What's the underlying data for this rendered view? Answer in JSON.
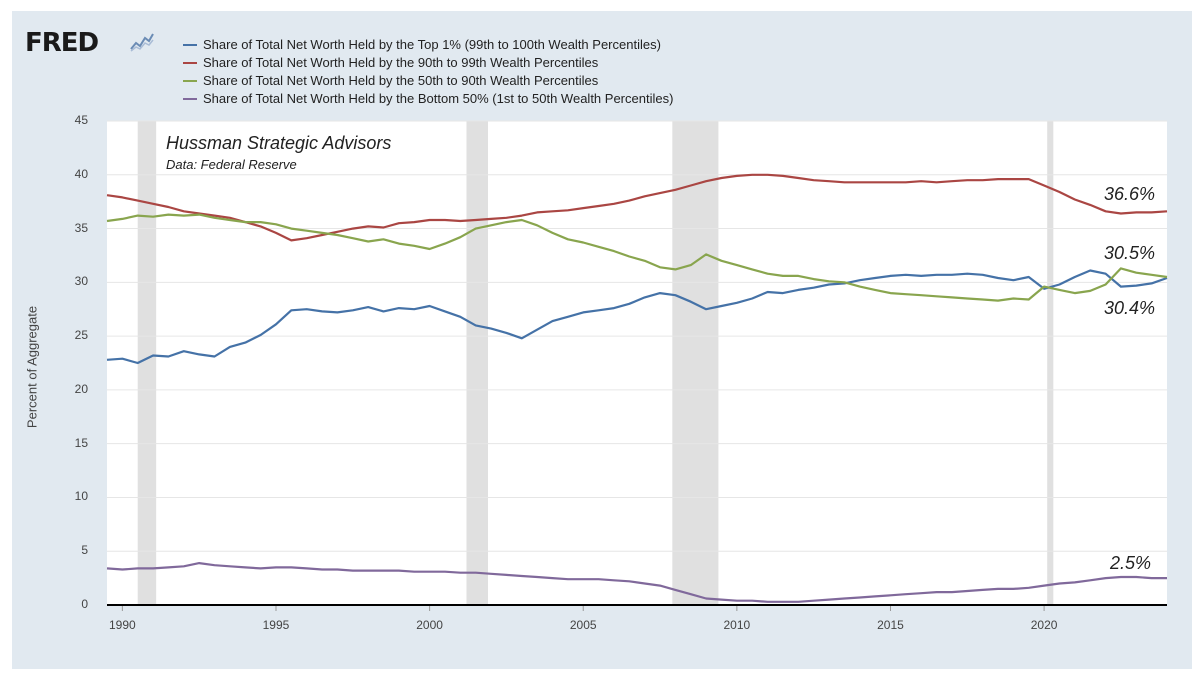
{
  "logo": {
    "text": "FRED",
    "icon": "fred-chart-line-icon"
  },
  "annotation": {
    "title": "Hussman Strategic Advisors",
    "subtitle": "Data: Federal Reserve"
  },
  "colors": {
    "frame": "#e1e9f0",
    "plot_bg": "#ffffff",
    "grid": "#e6e6e6",
    "recession": "#e0e0e0",
    "top1": "#4572a7",
    "p90_99": "#aa4643",
    "p50_90": "#89a54e",
    "bottom50": "#80699b"
  },
  "end_labels": [
    "36.6%",
    "30.5%",
    "30.4%",
    "2.5%"
  ],
  "chart_data": {
    "type": "line",
    "title": "",
    "xlabel": "",
    "ylabel": "Percent of Aggregate",
    "xlim": [
      1989.5,
      2024.0
    ],
    "ylim": [
      0,
      45
    ],
    "y_ticks": [
      "0",
      "5",
      "10",
      "15",
      "20",
      "25",
      "30",
      "35",
      "40",
      "45"
    ],
    "x_ticks": [
      "1990",
      "1995",
      "2000",
      "2005",
      "2010",
      "2015",
      "2020"
    ],
    "grid": "horizontal",
    "legend_position": "top",
    "recessions": [
      [
        1990.5,
        1991.1
      ],
      [
        2001.2,
        2001.9
      ],
      [
        2007.9,
        2009.4
      ],
      [
        2020.1,
        2020.3
      ]
    ],
    "series": [
      {
        "name": "Share of Total Net Worth Held by the Top 1% (99th to 100th Wealth Percentiles)",
        "points": [
          [
            1989.5,
            22.8
          ],
          [
            1990.0,
            22.9
          ],
          [
            1990.5,
            22.5
          ],
          [
            1991.0,
            23.2
          ],
          [
            1991.5,
            23.1
          ],
          [
            1992.0,
            23.6
          ],
          [
            1992.5,
            23.3
          ],
          [
            1993.0,
            23.1
          ],
          [
            1993.5,
            24.0
          ],
          [
            1994.0,
            24.4
          ],
          [
            1994.5,
            25.1
          ],
          [
            1995.0,
            26.1
          ],
          [
            1995.5,
            27.4
          ],
          [
            1996.0,
            27.5
          ],
          [
            1996.5,
            27.3
          ],
          [
            1997.0,
            27.2
          ],
          [
            1997.5,
            27.4
          ],
          [
            1998.0,
            27.7
          ],
          [
            1998.5,
            27.3
          ],
          [
            1999.0,
            27.6
          ],
          [
            1999.5,
            27.5
          ],
          [
            2000.0,
            27.8
          ],
          [
            2000.5,
            27.3
          ],
          [
            2001.0,
            26.8
          ],
          [
            2001.5,
            26.0
          ],
          [
            2002.0,
            25.7
          ],
          [
            2002.5,
            25.3
          ],
          [
            2003.0,
            24.8
          ],
          [
            2003.5,
            25.6
          ],
          [
            2004.0,
            26.4
          ],
          [
            2004.5,
            26.8
          ],
          [
            2005.0,
            27.2
          ],
          [
            2005.5,
            27.4
          ],
          [
            2006.0,
            27.6
          ],
          [
            2006.5,
            28.0
          ],
          [
            2007.0,
            28.6
          ],
          [
            2007.5,
            29.0
          ],
          [
            2008.0,
            28.8
          ],
          [
            2008.5,
            28.2
          ],
          [
            2009.0,
            27.5
          ],
          [
            2009.5,
            27.8
          ],
          [
            2010.0,
            28.1
          ],
          [
            2010.5,
            28.5
          ],
          [
            2011.0,
            29.1
          ],
          [
            2011.5,
            29.0
          ],
          [
            2012.0,
            29.3
          ],
          [
            2012.5,
            29.5
          ],
          [
            2013.0,
            29.8
          ],
          [
            2013.5,
            29.9
          ],
          [
            2014.0,
            30.2
          ],
          [
            2014.5,
            30.4
          ],
          [
            2015.0,
            30.6
          ],
          [
            2015.5,
            30.7
          ],
          [
            2016.0,
            30.6
          ],
          [
            2016.5,
            30.7
          ],
          [
            2017.0,
            30.7
          ],
          [
            2017.5,
            30.8
          ],
          [
            2018.0,
            30.7
          ],
          [
            2018.5,
            30.4
          ],
          [
            2019.0,
            30.2
          ],
          [
            2019.5,
            30.5
          ],
          [
            2020.0,
            29.4
          ],
          [
            2020.5,
            29.8
          ],
          [
            2021.0,
            30.5
          ],
          [
            2021.5,
            31.1
          ],
          [
            2022.0,
            30.8
          ],
          [
            2022.5,
            29.6
          ],
          [
            2023.0,
            29.7
          ],
          [
            2023.5,
            29.9
          ],
          [
            2024.0,
            30.4
          ]
        ]
      },
      {
        "name": "Share of Total Net Worth Held by the 90th to 99th Wealth Percentiles",
        "points": [
          [
            1989.5,
            38.1
          ],
          [
            1990.0,
            37.9
          ],
          [
            1990.5,
            37.6
          ],
          [
            1991.0,
            37.3
          ],
          [
            1991.5,
            37.0
          ],
          [
            1992.0,
            36.6
          ],
          [
            1992.5,
            36.4
          ],
          [
            1993.0,
            36.2
          ],
          [
            1993.5,
            36.0
          ],
          [
            1994.0,
            35.6
          ],
          [
            1994.5,
            35.2
          ],
          [
            1995.0,
            34.6
          ],
          [
            1995.5,
            33.9
          ],
          [
            1996.0,
            34.1
          ],
          [
            1996.5,
            34.4
          ],
          [
            1997.0,
            34.7
          ],
          [
            1997.5,
            35.0
          ],
          [
            1998.0,
            35.2
          ],
          [
            1998.5,
            35.1
          ],
          [
            1999.0,
            35.5
          ],
          [
            1999.5,
            35.6
          ],
          [
            2000.0,
            35.8
          ],
          [
            2000.5,
            35.8
          ],
          [
            2001.0,
            35.7
          ],
          [
            2001.5,
            35.8
          ],
          [
            2002.0,
            35.9
          ],
          [
            2002.5,
            36.0
          ],
          [
            2003.0,
            36.2
          ],
          [
            2003.5,
            36.5
          ],
          [
            2004.0,
            36.6
          ],
          [
            2004.5,
            36.7
          ],
          [
            2005.0,
            36.9
          ],
          [
            2005.5,
            37.1
          ],
          [
            2006.0,
            37.3
          ],
          [
            2006.5,
            37.6
          ],
          [
            2007.0,
            38.0
          ],
          [
            2007.5,
            38.3
          ],
          [
            2008.0,
            38.6
          ],
          [
            2008.5,
            39.0
          ],
          [
            2009.0,
            39.4
          ],
          [
            2009.5,
            39.7
          ],
          [
            2010.0,
            39.9
          ],
          [
            2010.5,
            40.0
          ],
          [
            2011.0,
            40.0
          ],
          [
            2011.5,
            39.9
          ],
          [
            2012.0,
            39.7
          ],
          [
            2012.5,
            39.5
          ],
          [
            2013.0,
            39.4
          ],
          [
            2013.5,
            39.3
          ],
          [
            2014.0,
            39.3
          ],
          [
            2014.5,
            39.3
          ],
          [
            2015.0,
            39.3
          ],
          [
            2015.5,
            39.3
          ],
          [
            2016.0,
            39.4
          ],
          [
            2016.5,
            39.3
          ],
          [
            2017.0,
            39.4
          ],
          [
            2017.5,
            39.5
          ],
          [
            2018.0,
            39.5
          ],
          [
            2018.5,
            39.6
          ],
          [
            2019.0,
            39.6
          ],
          [
            2019.5,
            39.6
          ],
          [
            2020.0,
            39.0
          ],
          [
            2020.5,
            38.4
          ],
          [
            2021.0,
            37.7
          ],
          [
            2021.5,
            37.2
          ],
          [
            2022.0,
            36.6
          ],
          [
            2022.5,
            36.4
          ],
          [
            2023.0,
            36.5
          ],
          [
            2023.5,
            36.5
          ],
          [
            2024.0,
            36.6
          ]
        ]
      },
      {
        "name": "Share of Total Net Worth Held by the 50th to 90th Wealth Percentiles",
        "points": [
          [
            1989.5,
            35.7
          ],
          [
            1990.0,
            35.9
          ],
          [
            1990.5,
            36.2
          ],
          [
            1991.0,
            36.1
          ],
          [
            1991.5,
            36.3
          ],
          [
            1992.0,
            36.2
          ],
          [
            1992.5,
            36.3
          ],
          [
            1993.0,
            36.0
          ],
          [
            1993.5,
            35.8
          ],
          [
            1994.0,
            35.6
          ],
          [
            1994.5,
            35.6
          ],
          [
            1995.0,
            35.4
          ],
          [
            1995.5,
            35.0
          ],
          [
            1996.0,
            34.8
          ],
          [
            1996.5,
            34.6
          ],
          [
            1997.0,
            34.4
          ],
          [
            1997.5,
            34.1
          ],
          [
            1998.0,
            33.8
          ],
          [
            1998.5,
            34.0
          ],
          [
            1999.0,
            33.6
          ],
          [
            1999.5,
            33.4
          ],
          [
            2000.0,
            33.1
          ],
          [
            2000.5,
            33.6
          ],
          [
            2001.0,
            34.2
          ],
          [
            2001.5,
            35.0
          ],
          [
            2002.0,
            35.3
          ],
          [
            2002.5,
            35.6
          ],
          [
            2003.0,
            35.8
          ],
          [
            2003.5,
            35.3
          ],
          [
            2004.0,
            34.6
          ],
          [
            2004.5,
            34.0
          ],
          [
            2005.0,
            33.7
          ],
          [
            2005.5,
            33.3
          ],
          [
            2006.0,
            32.9
          ],
          [
            2006.5,
            32.4
          ],
          [
            2007.0,
            32.0
          ],
          [
            2007.5,
            31.4
          ],
          [
            2008.0,
            31.2
          ],
          [
            2008.5,
            31.6
          ],
          [
            2009.0,
            32.6
          ],
          [
            2009.5,
            32.0
          ],
          [
            2010.0,
            31.6
          ],
          [
            2010.5,
            31.2
          ],
          [
            2011.0,
            30.8
          ],
          [
            2011.5,
            30.6
          ],
          [
            2012.0,
            30.6
          ],
          [
            2012.5,
            30.3
          ],
          [
            2013.0,
            30.1
          ],
          [
            2013.5,
            30.0
          ],
          [
            2014.0,
            29.6
          ],
          [
            2014.5,
            29.3
          ],
          [
            2015.0,
            29.0
          ],
          [
            2015.5,
            28.9
          ],
          [
            2016.0,
            28.8
          ],
          [
            2016.5,
            28.7
          ],
          [
            2017.0,
            28.6
          ],
          [
            2017.5,
            28.5
          ],
          [
            2018.0,
            28.4
          ],
          [
            2018.5,
            28.3
          ],
          [
            2019.0,
            28.5
          ],
          [
            2019.5,
            28.4
          ],
          [
            2020.0,
            29.6
          ],
          [
            2020.5,
            29.3
          ],
          [
            2021.0,
            29.0
          ],
          [
            2021.5,
            29.2
          ],
          [
            2022.0,
            29.8
          ],
          [
            2022.5,
            31.3
          ],
          [
            2023.0,
            30.9
          ],
          [
            2023.5,
            30.7
          ],
          [
            2024.0,
            30.5
          ]
        ]
      },
      {
        "name": "Share of Total Net Worth Held by the Bottom 50% (1st to 50th Wealth Percentiles)",
        "points": [
          [
            1989.5,
            3.4
          ],
          [
            1990.0,
            3.3
          ],
          [
            1990.5,
            3.4
          ],
          [
            1991.0,
            3.4
          ],
          [
            1991.5,
            3.5
          ],
          [
            1992.0,
            3.6
          ],
          [
            1992.5,
            3.9
          ],
          [
            1993.0,
            3.7
          ],
          [
            1993.5,
            3.6
          ],
          [
            1994.0,
            3.5
          ],
          [
            1994.5,
            3.4
          ],
          [
            1995.0,
            3.5
          ],
          [
            1995.5,
            3.5
          ],
          [
            1996.0,
            3.4
          ],
          [
            1996.5,
            3.3
          ],
          [
            1997.0,
            3.3
          ],
          [
            1997.5,
            3.2
          ],
          [
            1998.0,
            3.2
          ],
          [
            1998.5,
            3.2
          ],
          [
            1999.0,
            3.2
          ],
          [
            1999.5,
            3.1
          ],
          [
            2000.0,
            3.1
          ],
          [
            2000.5,
            3.1
          ],
          [
            2001.0,
            3.0
          ],
          [
            2001.5,
            3.0
          ],
          [
            2002.0,
            2.9
          ],
          [
            2002.5,
            2.8
          ],
          [
            2003.0,
            2.7
          ],
          [
            2003.5,
            2.6
          ],
          [
            2004.0,
            2.5
          ],
          [
            2004.5,
            2.4
          ],
          [
            2005.0,
            2.4
          ],
          [
            2005.5,
            2.4
          ],
          [
            2006.0,
            2.3
          ],
          [
            2006.5,
            2.2
          ],
          [
            2007.0,
            2.0
          ],
          [
            2007.5,
            1.8
          ],
          [
            2008.0,
            1.4
          ],
          [
            2008.5,
            1.0
          ],
          [
            2009.0,
            0.6
          ],
          [
            2009.5,
            0.5
          ],
          [
            2010.0,
            0.4
          ],
          [
            2010.5,
            0.4
          ],
          [
            2011.0,
            0.3
          ],
          [
            2011.5,
            0.3
          ],
          [
            2012.0,
            0.3
          ],
          [
            2012.5,
            0.4
          ],
          [
            2013.0,
            0.5
          ],
          [
            2013.5,
            0.6
          ],
          [
            2014.0,
            0.7
          ],
          [
            2014.5,
            0.8
          ],
          [
            2015.0,
            0.9
          ],
          [
            2015.5,
            1.0
          ],
          [
            2016.0,
            1.1
          ],
          [
            2016.5,
            1.2
          ],
          [
            2017.0,
            1.2
          ],
          [
            2017.5,
            1.3
          ],
          [
            2018.0,
            1.4
          ],
          [
            2018.5,
            1.5
          ],
          [
            2019.0,
            1.5
          ],
          [
            2019.5,
            1.6
          ],
          [
            2020.0,
            1.8
          ],
          [
            2020.5,
            2.0
          ],
          [
            2021.0,
            2.1
          ],
          [
            2021.5,
            2.3
          ],
          [
            2022.0,
            2.5
          ],
          [
            2022.5,
            2.6
          ],
          [
            2023.0,
            2.6
          ],
          [
            2023.5,
            2.5
          ],
          [
            2024.0,
            2.5
          ]
        ]
      }
    ]
  }
}
